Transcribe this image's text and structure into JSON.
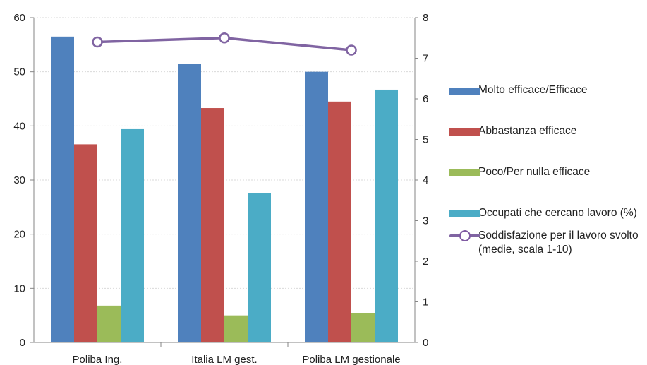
{
  "chart_data": {
    "type": "bar",
    "categories": [
      "Poliba Ing.",
      "Italia LM gest.",
      "Poliba LM gestionale"
    ],
    "series": [
      {
        "name": "Molto efficace/Efficace",
        "type": "bar",
        "axis": "left",
        "color": "#4f81bd",
        "values": [
          56.5,
          51.5,
          50.0
        ]
      },
      {
        "name": "Abbastanza efficace",
        "type": "bar",
        "axis": "left",
        "color": "#c0504d",
        "values": [
          36.6,
          43.3,
          44.5
        ]
      },
      {
        "name": "Poco/Per nulla efficace",
        "type": "bar",
        "axis": "left",
        "color": "#9bbb59",
        "values": [
          6.8,
          5.0,
          5.4
        ]
      },
      {
        "name": "Occupati che cercano lavoro (%)",
        "type": "bar",
        "axis": "left",
        "color": "#4bacc6",
        "values": [
          39.4,
          27.6,
          46.7
        ]
      },
      {
        "name": "Soddisfazione per il lavoro svolto (medie, scala 1-10)",
        "type": "line",
        "axis": "right",
        "color": "#8064a2",
        "values": [
          7.4,
          7.5,
          7.2
        ]
      }
    ],
    "ylim_left": [
      0,
      60
    ],
    "yticks_left": [
      "0",
      "10",
      "20",
      "30",
      "40",
      "50",
      "60"
    ],
    "ylim_right": [
      0,
      8
    ],
    "yticks_right": [
      "0",
      "1",
      "2",
      "3",
      "4",
      "5",
      "6",
      "7",
      "8"
    ],
    "grid": true,
    "legend_position": "right"
  }
}
